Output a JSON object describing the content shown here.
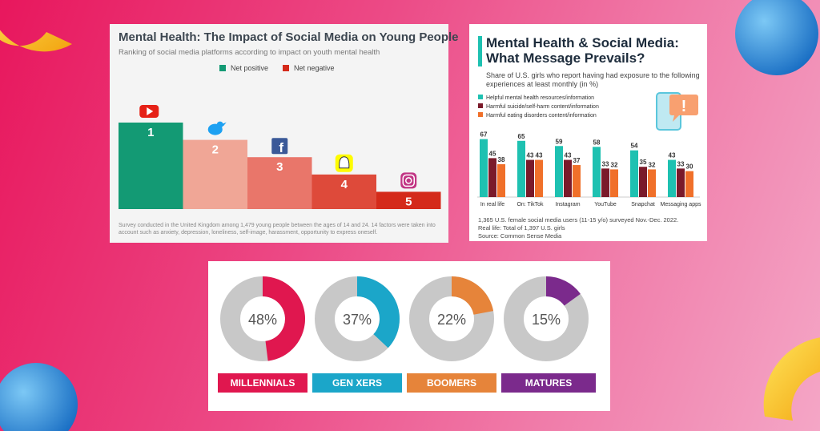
{
  "colors": {
    "yellow": "#f6c61a",
    "blue": "#2a93de",
    "green": "#139a74",
    "pink_light": "#f0a696",
    "salmon": "#e9766a",
    "red_mid": "#de4a3a",
    "red": "#d42a1a",
    "teal": "#1ec1b1",
    "maroon": "#7a1a2a",
    "orange": "#f0702a",
    "gray": "#c8c8c8",
    "millennials": "#e0174f",
    "genx": "#1ba6c9",
    "boomers": "#e6843a",
    "matures": "#7b2a8c"
  },
  "chart_data": [
    {
      "type": "bar",
      "title": "Mental Health: The Impact of Social Media on Young People",
      "subtitle": "Ranking of social media platforms according to impact on youth mental health",
      "legend": [
        {
          "label": "Net positive",
          "color": "#139a74"
        },
        {
          "label": "Net negative",
          "color": "#d42a1a"
        }
      ],
      "categories": [
        "1",
        "2",
        "3",
        "4",
        "5"
      ],
      "icons": [
        "youtube-icon",
        "twitter-icon",
        "facebook-icon",
        "snapchat-icon",
        "instagram-icon"
      ],
      "values": [
        5,
        4,
        3,
        2,
        1
      ],
      "colors": [
        "#139a74",
        "#f0a696",
        "#e9766a",
        "#de4a3a",
        "#d42a1a"
      ],
      "footnote": "Survey conducted in the United Kingdom among 1,479 young people between the ages of 14 and 24. 14 factors were taken into account such as anxiety, depression, loneliness, self-image, harassment, opportunity to express oneself."
    },
    {
      "type": "bar",
      "title": "Mental Health & Social Media: What Message Prevails?",
      "subtitle": "Share of U.S. girls who report having had exposure to the following experiences at least monthly (in %)",
      "categories": [
        "In real life",
        "On: TikTok",
        "Instagram",
        "YouTube",
        "Snapchat",
        "Messaging apps"
      ],
      "series": [
        {
          "name": "Helpful mental health resources/information",
          "color": "#1ec1b1",
          "values": [
            67,
            65,
            59,
            58,
            54,
            43
          ]
        },
        {
          "name": "Harmful suicide/self-harm content/information",
          "color": "#7a1a2a",
          "values": [
            45,
            43,
            43,
            33,
            35,
            33
          ]
        },
        {
          "name": "Harmful eating disorders content/information",
          "color": "#f0702a",
          "values": [
            38,
            43,
            37,
            32,
            32,
            30
          ]
        }
      ],
      "footnotes": [
        "1,365 U.S. female social media users (11-15 y/o) surveyed Nov.-Dec. 2022.",
        "Real life: Total of 1,397 U.S. girls",
        "Source: Common Sense Media"
      ]
    },
    {
      "type": "pie",
      "categories": [
        "MILLENNIALS",
        "GEN XERS",
        "BOOMERS",
        "MATURES"
      ],
      "values": [
        48,
        37,
        22,
        15
      ],
      "labels": [
        "48%",
        "37%",
        "22%",
        "15%"
      ],
      "colors": [
        "#e0174f",
        "#1ba6c9",
        "#e6843a",
        "#7b2a8c"
      ]
    }
  ]
}
